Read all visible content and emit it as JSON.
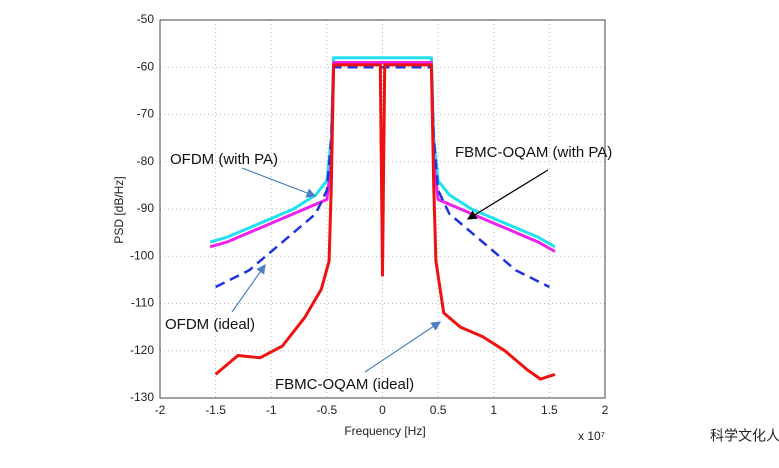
{
  "chart_data": {
    "type": "line",
    "xlabel": "Frequency [Hz]",
    "ylabel": "PSD [dB/Hz]",
    "x_scale_label": "x 10⁷",
    "xlim": [
      -2,
      2
    ],
    "xticks": [
      -2,
      -1.5,
      -1,
      -0.5,
      0,
      0.5,
      1,
      1.5,
      2
    ],
    "ylim": [
      -130,
      -50
    ],
    "yticks": [
      -130,
      -120,
      -110,
      -100,
      -90,
      -80,
      -70,
      -60,
      -50
    ],
    "grid": true,
    "series": [
      {
        "name": "OFDM (with PA)",
        "color": "#22e0f0",
        "dash": false,
        "x": [
          -1.55,
          -1.4,
          -1.2,
          -1.0,
          -0.8,
          -0.6,
          -0.5,
          -0.46,
          -0.44,
          -0.3,
          -0.1,
          0,
          0.1,
          0.3,
          0.44,
          0.46,
          0.5,
          0.6,
          0.8,
          1.0,
          1.2,
          1.4,
          1.55
        ],
        "values": [
          -97,
          -96,
          -94,
          -92,
          -90,
          -87,
          -84,
          -75,
          -58,
          -58,
          -58,
          -58,
          -58,
          -58,
          -58,
          -75,
          -84,
          -87,
          -90,
          -92,
          -94,
          -96,
          -98
        ]
      },
      {
        "name": "FBMC-OQAM (with PA)",
        "color": "#ee22ee",
        "dash": false,
        "x": [
          -1.55,
          -1.4,
          -1.2,
          -1.0,
          -0.8,
          -0.6,
          -0.5,
          -0.46,
          -0.44,
          -0.3,
          -0.1,
          0,
          0.1,
          0.3,
          0.44,
          0.46,
          0.5,
          0.6,
          0.8,
          1.0,
          1.2,
          1.4,
          1.55
        ],
        "values": [
          -98,
          -97,
          -95,
          -93,
          -91,
          -89,
          -88,
          -80,
          -59,
          -59,
          -59,
          -59,
          -59,
          -59,
          -59,
          -80,
          -88,
          -89,
          -91,
          -93,
          -95,
          -97,
          -99
        ]
      },
      {
        "name": "OFDM (ideal)",
        "color": "#2233dd",
        "dash": true,
        "x": [
          -1.5,
          -1.2,
          -1.0,
          -0.8,
          -0.6,
          -0.5,
          -0.46,
          -0.44,
          -0.2,
          0,
          0.2,
          0.44,
          0.46,
          0.5,
          0.6,
          0.8,
          1.0,
          1.2,
          1.5
        ],
        "values": [
          -106.5,
          -103,
          -99,
          -95,
          -91,
          -86,
          -75,
          -60,
          -60,
          -60,
          -60,
          -60,
          -75,
          -86,
          -91,
          -95,
          -99,
          -103,
          -106.5
        ]
      },
      {
        "name": "FBMC-OQAM (ideal)",
        "color": "#ee1111",
        "dash": false,
        "x": [
          -1.5,
          -1.3,
          -1.1,
          -0.9,
          -0.7,
          -0.55,
          -0.48,
          -0.46,
          -0.44,
          -0.2,
          -0.02,
          0,
          0.02,
          0.2,
          0.44,
          0.46,
          0.48,
          0.55,
          0.7,
          0.9,
          1.1,
          1.3,
          1.42,
          1.55
        ],
        "values": [
          -125,
          -121,
          -121.5,
          -119,
          -113,
          -107,
          -101,
          -85,
          -59.5,
          -59.5,
          -59.5,
          -104,
          -59.5,
          -59.5,
          -59.5,
          -85,
          -101,
          -112,
          -115,
          -117,
          -120,
          -124,
          -126,
          -125
        ]
      }
    ],
    "annotations": [
      "OFDM (with PA)",
      "FBMC-OQAM (with PA)",
      "OFDM (ideal)",
      "FBMC-OQAM (ideal)"
    ],
    "watermark": "科学文化人"
  }
}
